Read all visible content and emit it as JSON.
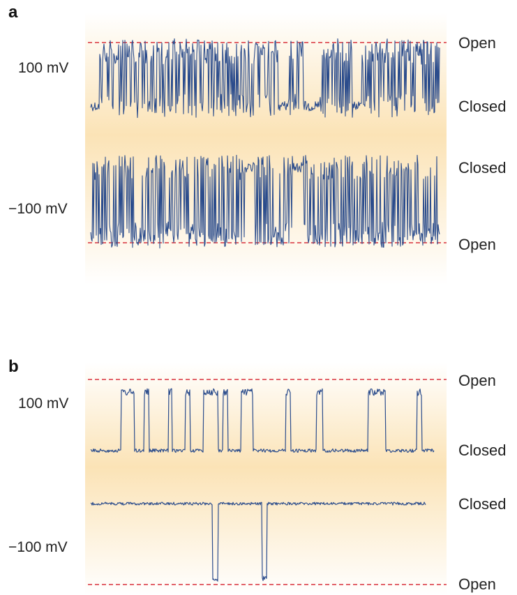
{
  "panels": [
    {
      "letter": "a",
      "traces": [
        {
          "voltage_label": "100 mV",
          "upper_state": "Open",
          "lower_state": "Closed"
        },
        {
          "voltage_label": "−100 mV",
          "upper_state": "Closed",
          "lower_state": "Open"
        }
      ]
    },
    {
      "letter": "b",
      "traces": [
        {
          "voltage_label": "100 mV",
          "upper_state": "Open",
          "lower_state": "Closed"
        },
        {
          "voltage_label": "−100 mV",
          "upper_state": "Closed",
          "lower_state": "Open"
        }
      ]
    }
  ],
  "colors": {
    "trace": "#2b4c8c",
    "open_level_line": "#d8323c",
    "background_band": "#fbe3b6"
  }
}
